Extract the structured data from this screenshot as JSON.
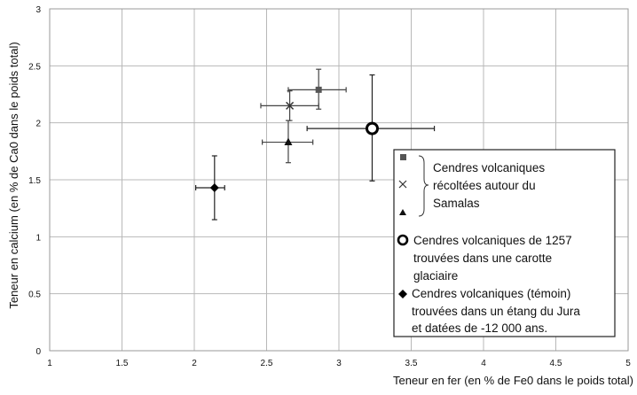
{
  "chart_data": {
    "type": "scatter",
    "title": "",
    "xlabel": "Teneur en fer (en % de Fe0 dans le poids total)",
    "ylabel": "Teneur en calcium (en % de Ca0 dans le poids total)",
    "xlim": [
      1,
      5
    ],
    "ylim": [
      0,
      3
    ],
    "xticks": [
      "1",
      "1.5",
      "2",
      "2.5",
      "3",
      "3.5",
      "4",
      "4.5",
      "5"
    ],
    "yticks": [
      "0",
      "0.5",
      "1",
      "1.5",
      "2",
      "2.5",
      "3"
    ],
    "grid": true,
    "legend_position": "bottom-right",
    "series": [
      {
        "marker": "square",
        "x": 2.86,
        "y": 2.29,
        "xerr": [
          0.21,
          0.19
        ],
        "yerr": [
          0.17,
          0.18
        ],
        "color": "#555555"
      },
      {
        "marker": "x",
        "x": 2.66,
        "y": 2.15,
        "xerr": [
          0.2,
          0.2
        ],
        "yerr": [
          0.13,
          0.13
        ],
        "color": "#333333"
      },
      {
        "marker": "triangle",
        "x": 2.65,
        "y": 1.83,
        "xerr": [
          0.18,
          0.17
        ],
        "yerr": [
          0.18,
          0.19
        ],
        "color": "#111111"
      },
      {
        "marker": "ring",
        "x": 3.23,
        "y": 1.95,
        "xerr": [
          0.45,
          0.43
        ],
        "yerr": [
          0.46,
          0.47
        ],
        "color": "#000000"
      },
      {
        "marker": "diamond",
        "x": 2.14,
        "y": 1.43,
        "xerr": [
          0.13,
          0.07
        ],
        "yerr": [
          0.28,
          0.28
        ],
        "color": "#000000"
      }
    ],
    "legend": {
      "group1_lines": [
        "Cendres volcaniques",
        "récoltées autour du",
        "Samalas"
      ],
      "group2_lines": [
        "Cendres volcaniques de 1257",
        "trouvées dans une carotte",
        "glaciaire"
      ],
      "group3_lines": [
        "Cendres volcaniques (témoin)",
        "trouvées dans un étang du Jura",
        "et datées de -12 000 ans."
      ]
    }
  }
}
